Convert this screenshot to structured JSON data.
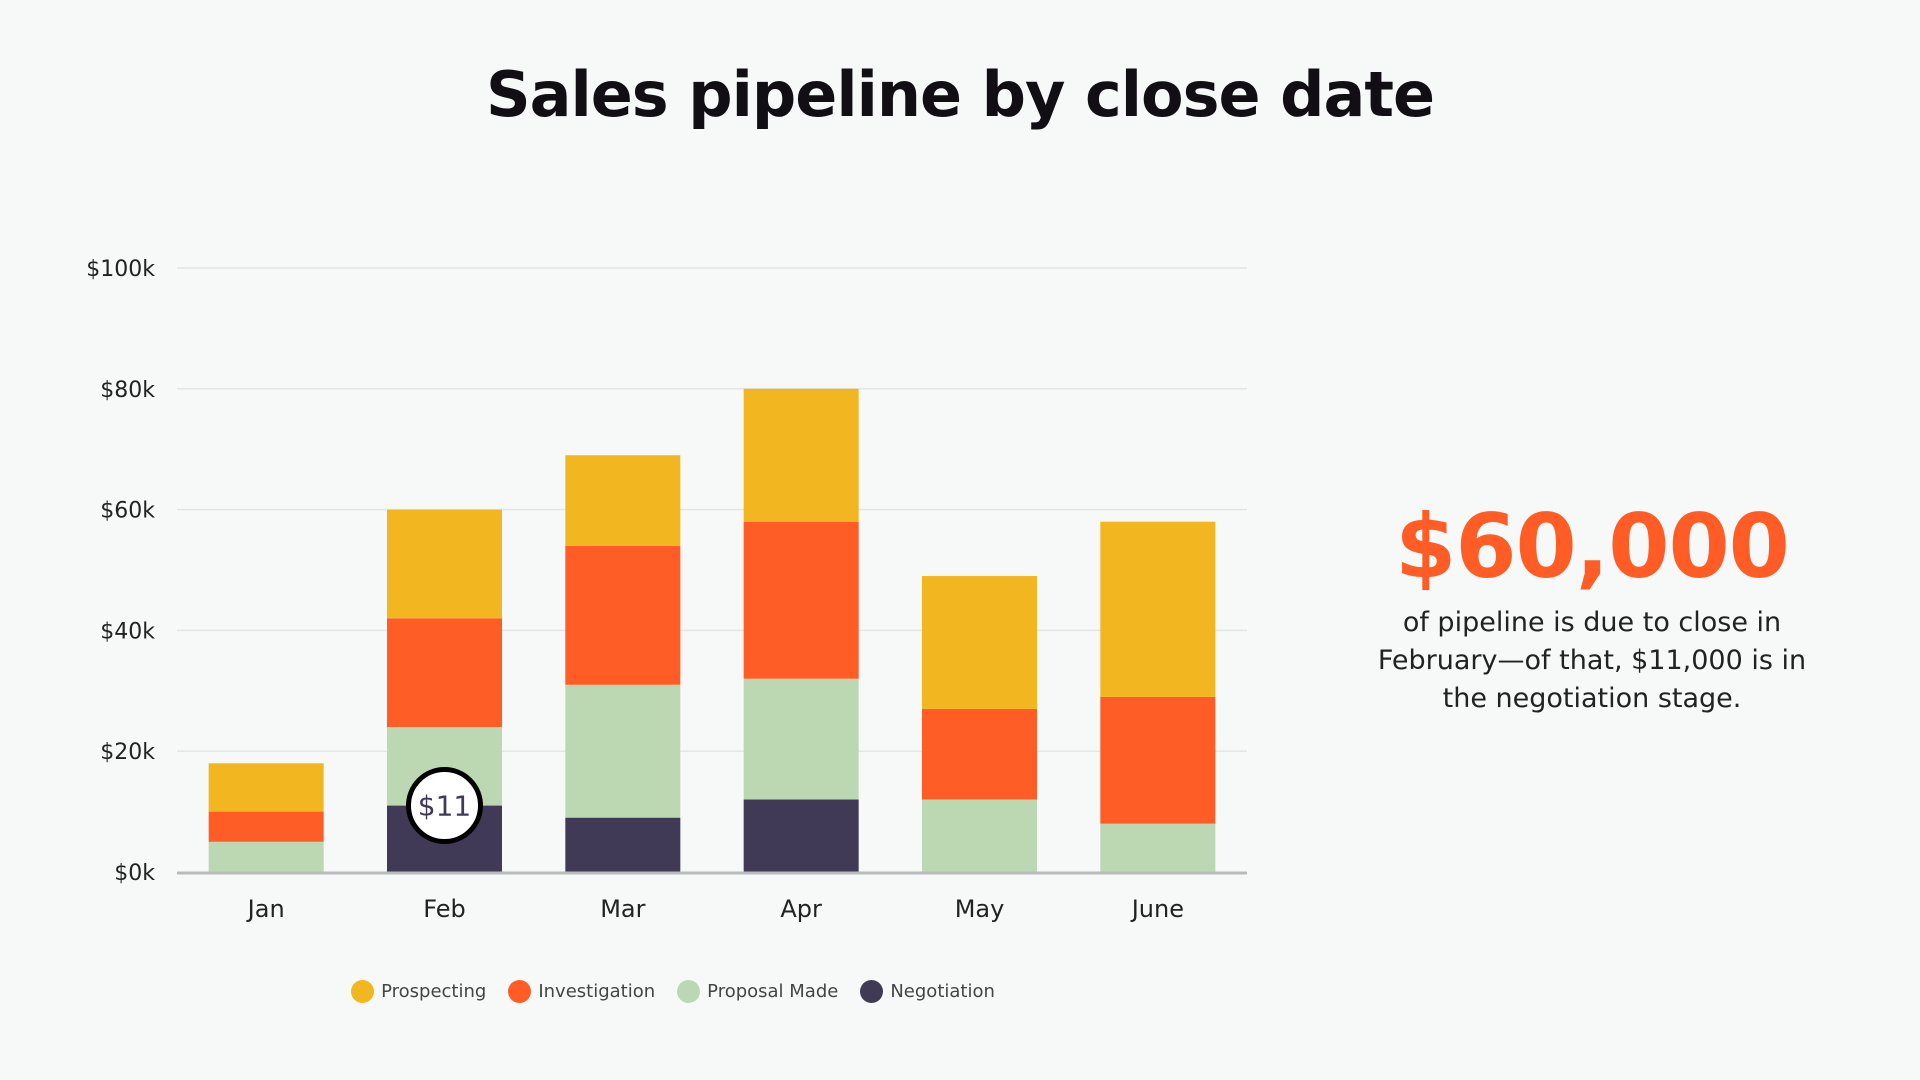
{
  "title": "Sales pipeline by close date",
  "callout": {
    "value": "$60,000",
    "text": "of pipeline is due to close in February—of that, $11,000 is in the negotiation stage."
  },
  "chart_data": {
    "type": "bar",
    "stacked": true,
    "categories": [
      "Jan",
      "Feb",
      "Mar",
      "Apr",
      "May",
      "June"
    ],
    "series": [
      {
        "name": "Negotiation",
        "color": "#403a56",
        "values": [
          0,
          11,
          9,
          12,
          0,
          0
        ]
      },
      {
        "name": "Proposal Made",
        "color": "#bcd8b3",
        "values": [
          5,
          13,
          22,
          20,
          12,
          8
        ]
      },
      {
        "name": "Investigation",
        "color": "#ff5c26",
        "values": [
          5,
          18,
          23,
          26,
          15,
          21
        ]
      },
      {
        "name": "Prospecting",
        "color": "#f2b620",
        "values": [
          8,
          18,
          15,
          22,
          22,
          29
        ]
      }
    ],
    "legend_order": [
      "Prospecting",
      "Investigation",
      "Proposal Made",
      "Negotiation"
    ],
    "ylim": [
      0,
      100
    ],
    "yticks": [
      "$0k",
      "$20k",
      "$40k",
      "$60k",
      "$80k",
      "$100k"
    ],
    "grid": true,
    "legend": "bottom",
    "annotation": {
      "category": "Feb",
      "series": "Negotiation",
      "label": "$11"
    }
  }
}
